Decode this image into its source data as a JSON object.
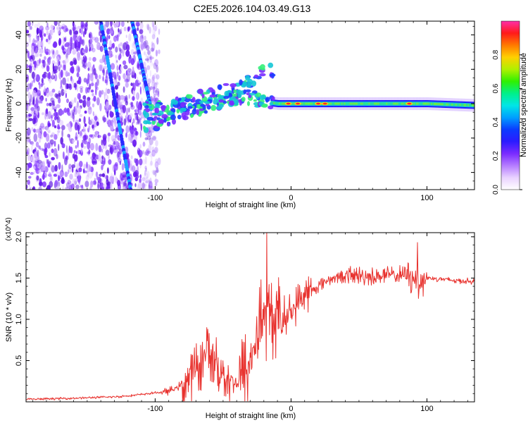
{
  "title": "C2E5.2026.104.03.49.G13",
  "colors": {
    "snr_line": "#e8322e",
    "axis": "#000000",
    "background": "#ffffff",
    "spectrogram_track": "#12c8d0",
    "spectrogram_noise": "#7a3de0",
    "colorbar_stops": [
      "#ffffff",
      "#e9d2ff",
      "#b57cff",
      "#7a2bff",
      "#2b1bff",
      "#0b3cff",
      "#00a0ff",
      "#00e6e6",
      "#00f08a",
      "#30f000",
      "#b0f000",
      "#ffd000",
      "#ff7a00",
      "#ff1a1a",
      "#ff2fa8"
    ]
  },
  "chart_data": [
    {
      "type": "heatmap",
      "name": "spectrogram",
      "xlabel": "Height of straight line (km)",
      "ylabel": "Frequency (Hz)",
      "xlim": [
        -195,
        135
      ],
      "ylim": [
        -50,
        48
      ],
      "x_ticks": [
        -100,
        0,
        100
      ],
      "x_tick_labels": [
        "-100",
        "0",
        "100"
      ],
      "y_ticks": [
        -40,
        -20,
        0,
        20,
        40
      ],
      "y_tick_labels": [
        "-40",
        "-20",
        "0",
        "20",
        "40"
      ],
      "colorbar": {
        "label": "Normalized spectral amplitude",
        "range": [
          0,
          1
        ],
        "ticks": [
          0.0,
          0.2,
          0.4,
          0.6,
          0.8
        ],
        "tick_labels": [
          "0.0",
          "0.2",
          "0.4",
          "0.6",
          "0.8"
        ]
      },
      "features": {
        "diagonal_streaks": [
          {
            "x_start": -140,
            "y_start": 48,
            "x_end": -118,
            "y_end": -50
          },
          {
            "x_start": -117,
            "y_start": 48,
            "x_end": -103,
            "y_end": -3
          }
        ],
        "noise_region_x": [
          -195,
          -105
        ],
        "main_track": [
          {
            "x": -108,
            "y": -13
          },
          {
            "x": -100,
            "y": -11
          },
          {
            "x": -90,
            "y": -8
          },
          {
            "x": -80,
            "y": -5
          },
          {
            "x": -70,
            "y": -3
          },
          {
            "x": -60,
            "y": -1
          },
          {
            "x": -50,
            "y": 2
          },
          {
            "x": -40,
            "y": 3
          },
          {
            "x": -30,
            "y": 4
          },
          {
            "x": -20,
            "y": 1
          },
          {
            "x": -10,
            "y": 0
          },
          {
            "x": 0,
            "y": 0
          },
          {
            "x": 20,
            "y": 0
          },
          {
            "x": 50,
            "y": 0
          },
          {
            "x": 85,
            "y": 0
          },
          {
            "x": 100,
            "y": 0
          },
          {
            "x": 135,
            "y": -1
          }
        ],
        "upper_branch": [
          {
            "x": -90,
            "y": -3
          },
          {
            "x": -70,
            "y": 3
          },
          {
            "x": -50,
            "y": 7
          },
          {
            "x": -35,
            "y": 10
          },
          {
            "x": -20,
            "y": 20
          }
        ]
      }
    },
    {
      "type": "line",
      "name": "snr",
      "xlabel": "Height of straight line (km)",
      "ylabel": "SNR (10 * v/v)",
      "y_multiplier": "(x10^4)",
      "xlim": [
        -195,
        135
      ],
      "ylim": [
        0,
        2.05
      ],
      "x_ticks": [
        -100,
        0,
        100
      ],
      "x_tick_labels": [
        "-100",
        "0",
        "100"
      ],
      "y_ticks": [
        0.5,
        1.0,
        1.5,
        2.0
      ],
      "y_tick_labels": [
        "0.5",
        "1.0",
        "1.5",
        "2.0"
      ],
      "series": [
        {
          "name": "SNR",
          "points": [
            [
              -195,
              0.03
            ],
            [
              -170,
              0.04
            ],
            [
              -150,
              0.05
            ],
            [
              -130,
              0.06
            ],
            [
              -115,
              0.08
            ],
            [
              -100,
              0.11
            ],
            [
              -92,
              0.12
            ],
            [
              -85,
              0.16
            ],
            [
              -75,
              0.28
            ],
            [
              -68,
              0.45
            ],
            [
              -63,
              0.55
            ],
            [
              -58,
              0.55
            ],
            [
              -52,
              0.4
            ],
            [
              -46,
              0.28
            ],
            [
              -40,
              0.22
            ],
            [
              -35,
              0.3
            ],
            [
              -30,
              0.45
            ],
            [
              -25,
              0.85
            ],
            [
              -20,
              1.0
            ],
            [
              -15,
              1.05
            ],
            [
              -10,
              1.02
            ],
            [
              -5,
              1.05
            ],
            [
              0,
              1.08
            ],
            [
              5,
              1.2
            ],
            [
              10,
              1.3
            ],
            [
              15,
              1.35
            ],
            [
              20,
              1.4
            ],
            [
              25,
              1.46
            ],
            [
              30,
              1.5
            ],
            [
              40,
              1.52
            ],
            [
              50,
              1.53
            ],
            [
              60,
              1.52
            ],
            [
              70,
              1.53
            ],
            [
              80,
              1.54
            ],
            [
              88,
              1.52
            ],
            [
              92,
              1.5
            ],
            [
              95,
              1.45
            ],
            [
              100,
              1.5
            ],
            [
              110,
              1.49
            ],
            [
              120,
              1.47
            ],
            [
              135,
              1.46
            ]
          ],
          "spikes": [
            {
              "x": -18,
              "y": 2.05
            },
            {
              "x": -22,
              "y": 1.48
            },
            {
              "x": 93,
              "y": 1.93
            },
            {
              "x": -62,
              "y": 0.9
            },
            {
              "x": -55,
              "y": 0.78
            }
          ]
        }
      ]
    }
  ]
}
